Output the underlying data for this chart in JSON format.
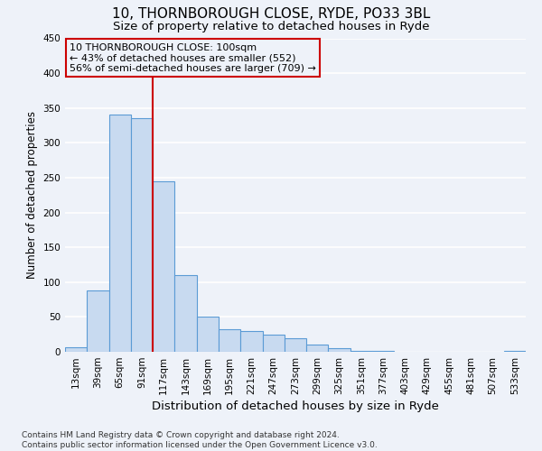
{
  "title": "10, THORNBOROUGH CLOSE, RYDE, PO33 3BL",
  "subtitle": "Size of property relative to detached houses in Ryde",
  "xlabel": "Distribution of detached houses by size in Ryde",
  "ylabel": "Number of detached properties",
  "bar_labels": [
    "13sqm",
    "39sqm",
    "65sqm",
    "91sqm",
    "117sqm",
    "143sqm",
    "169sqm",
    "195sqm",
    "221sqm",
    "247sqm",
    "273sqm",
    "299sqm",
    "325sqm",
    "351sqm",
    "377sqm",
    "403sqm",
    "429sqm",
    "455sqm",
    "481sqm",
    "507sqm",
    "533sqm"
  ],
  "bar_values": [
    7,
    88,
    340,
    335,
    245,
    110,
    50,
    32,
    30,
    25,
    20,
    10,
    5,
    1,
    1,
    0,
    0,
    0,
    0,
    0,
    1
  ],
  "bar_color": "#c8daf0",
  "bar_edge_color": "#5b9bd5",
  "bar_edge_width": 0.8,
  "vline_x": 3.5,
  "vline_color": "#cc0000",
  "ylim": [
    0,
    450
  ],
  "yticks": [
    0,
    50,
    100,
    150,
    200,
    250,
    300,
    350,
    400,
    450
  ],
  "annotation_title": "10 THORNBOROUGH CLOSE: 100sqm",
  "annotation_line1": "← 43% of detached houses are smaller (552)",
  "annotation_line2": "56% of semi-detached houses are larger (709) →",
  "annotation_box_color": "#cc0000",
  "background_color": "#eef2f9",
  "footer_line1": "Contains HM Land Registry data © Crown copyright and database right 2024.",
  "footer_line2": "Contains public sector information licensed under the Open Government Licence v3.0.",
  "grid_color": "#ffffff",
  "title_fontsize": 11,
  "subtitle_fontsize": 9.5,
  "xlabel_fontsize": 9.5,
  "ylabel_fontsize": 8.5,
  "tick_fontsize": 7.5,
  "annotation_fontsize": 8.0,
  "footer_fontsize": 6.5
}
